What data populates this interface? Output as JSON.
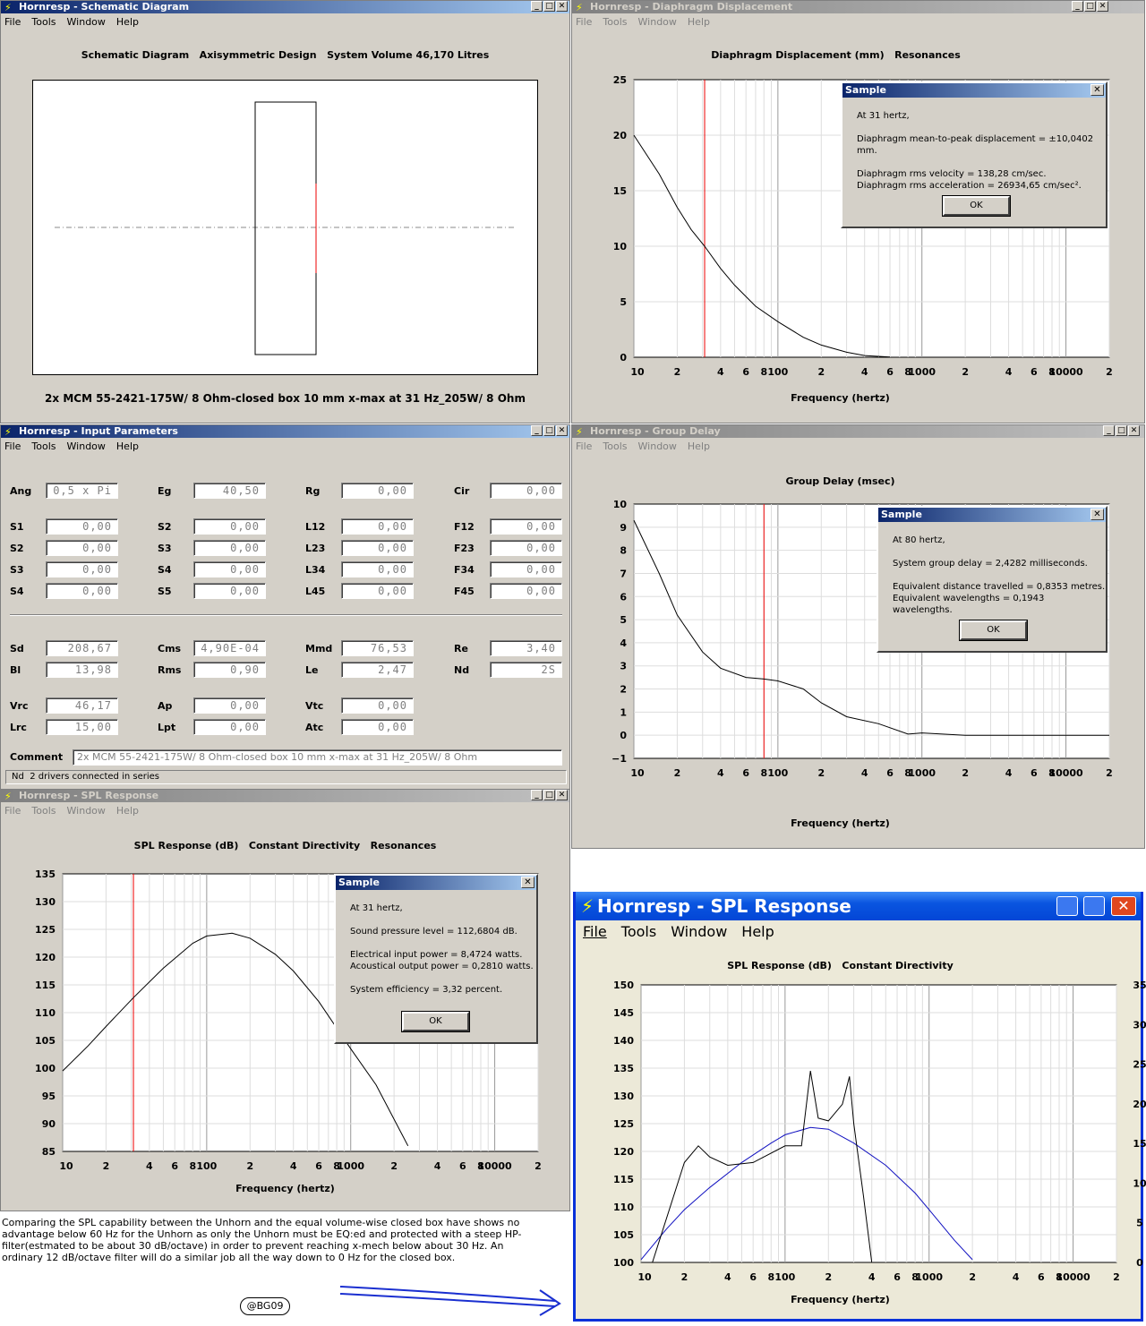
{
  "schematic": {
    "title": "Hornresp - Schematic Diagram",
    "menu": [
      "File",
      "Tools",
      "Window",
      "Help"
    ],
    "heading": "Schematic Diagram   Axisymmetric Design   System Volume 46,170 Litres",
    "caption": "2x MCM 55-2421-175W/ 8 Ohm-closed box 10 mm x-max at 31 Hz_205W/ 8 Ohm"
  },
  "displacement": {
    "title": "Hornresp - Diaphragm Displacement",
    "menu": [
      "File",
      "Tools",
      "Window",
      "Help"
    ],
    "heading": "Diaphragm Displacement (mm)   Resonances",
    "xlabel": "Frequency (hertz)",
    "yticks": [
      "25",
      "20",
      "15",
      "10",
      "5",
      "0"
    ],
    "dialog": {
      "title": "Sample",
      "lines": [
        "At 31 hertz,",
        "Diaphragm mean-to-peak displacement = ±10,0402 mm.",
        "Diaphragm rms velocity = 138,28 cm/sec.",
        "Diaphragm rms acceleration = 26934,65 cm/sec².",
        "OK"
      ]
    }
  },
  "input": {
    "title": "Hornresp - Input Parameters",
    "menu": [
      "File",
      "Tools",
      "Window",
      "Help"
    ],
    "params": [
      [
        "Ang",
        "0,5 x Pi",
        "Eg",
        "40,50",
        "Rg",
        "0,00",
        "Cir",
        "0,00"
      ],
      [
        "S1",
        "0,00",
        "S2",
        "0,00",
        "L12",
        "0,00",
        "F12",
        "0,00"
      ],
      [
        "S2",
        "0,00",
        "S3",
        "0,00",
        "L23",
        "0,00",
        "F23",
        "0,00"
      ],
      [
        "S3",
        "0,00",
        "S4",
        "0,00",
        "L34",
        "0,00",
        "F34",
        "0,00"
      ],
      [
        "S4",
        "0,00",
        "S5",
        "0,00",
        "L45",
        "0,00",
        "F45",
        "0,00"
      ],
      [
        "Sd",
        "208,67",
        "Cms",
        "4,90E-04",
        "Mmd",
        "76,53",
        "Re",
        "3,40"
      ],
      [
        "Bl",
        "13,98",
        "Rms",
        "0,90",
        "Le",
        "2,47",
        "Nd",
        "2S"
      ],
      [
        "Vrc",
        "46,17",
        "Ap",
        "0,00",
        "Vtc",
        "0,00",
        "",
        ""
      ],
      [
        "Lrc",
        "15,00",
        "Lpt",
        "0,00",
        "Atc",
        "0,00",
        "",
        ""
      ]
    ],
    "comment_label": "Comment",
    "comment": "2x MCM 55-2421-175W/ 8 Ohm-closed box 10 mm x-max at 31 Hz_205W/ 8 Ohm",
    "status_key": "Nd",
    "status": "2 drivers connected in series"
  },
  "group": {
    "title": "Hornresp - Group Delay",
    "menu": [
      "File",
      "Tools",
      "Window",
      "Help"
    ],
    "heading": "Group Delay (msec)",
    "xlabel": "Frequency (hertz)",
    "yticks": [
      "10",
      "9",
      "8",
      "7",
      "6",
      "5",
      "4",
      "3",
      "2",
      "1",
      "0",
      "−1"
    ],
    "dialog": {
      "title": "Sample",
      "lines": [
        "At 80 hertz,",
        "System group delay = 2,4282 milliseconds.",
        "Equivalent distance travelled = 0,8353 metres.",
        "Equivalent wavelengths = 0,1943 wavelengths.",
        "OK"
      ]
    }
  },
  "spl": {
    "title": "Hornresp - SPL Response",
    "menu": [
      "File",
      "Tools",
      "Window",
      "Help"
    ],
    "heading": "SPL Response (dB)   Constant Directivity   Resonances",
    "xlabel": "Frequency (hertz)",
    "yticks": [
      "135",
      "130",
      "125",
      "120",
      "115",
      "110",
      "105",
      "100",
      "95",
      "90",
      "85"
    ],
    "dialog": {
      "title": "Sample",
      "lines": [
        "At 31 hertz,",
        "Sound pressure level = 112,6804 dB.",
        "Electrical input power = 8,4724 watts.",
        "Acoustical output power = 0,2810 watts.",
        "System efficiency = 3,32 percent.",
        "OK"
      ]
    }
  },
  "spl2": {
    "title": "Hornresp - SPL Response",
    "menu": [
      "File",
      "Tools",
      "Window",
      "Help"
    ],
    "heading": "SPL Response (dB)   Constant Directivity",
    "xlabel": "Frequency (hertz)",
    "yticks": [
      "150",
      "145",
      "140",
      "135",
      "130",
      "125",
      "120",
      "115",
      "110",
      "105",
      "100"
    ],
    "y2ticks": [
      "35",
      "30",
      "25",
      "20",
      "15",
      "10",
      "5",
      "0"
    ]
  },
  "xticks": [
    "10",
    "2",
    "4",
    "6",
    "8",
    "100",
    "2",
    "4",
    "6",
    "8",
    "1000",
    "2",
    "4",
    "6",
    "8",
    "10000",
    "2"
  ],
  "note": "Comparing the SPL capability between the Unhorn and the equal volume-wise closed box have shows no advantage below 60 Hz for the Unhorn as  only  the Unhorn must be EQ:ed and protected with a steep HP-filter(estmated to be about 30 dB/octave) in order to prevent reaching x-mech below about 30 Hz. An ordinary 12 dB/octave filter will do a similar job all the way down to 0 Hz  for the closed box.",
  "badge": "@BG09",
  "chart_data": [
    {
      "type": "line",
      "title": "Diaphragm Displacement (mm)   Resonances",
      "xlabel": "Frequency (hertz)",
      "xscale": "log",
      "xlim": [
        10,
        20000
      ],
      "ylim": [
        0,
        25
      ],
      "marker_hz": 31,
      "x": [
        10,
        15,
        20,
        25,
        31,
        40,
        50,
        70,
        100,
        150,
        200,
        300,
        400,
        600
      ],
      "y": [
        20,
        16.5,
        13.5,
        11.5,
        10,
        8,
        6.5,
        4.6,
        3.2,
        1.8,
        1.1,
        0.45,
        0.15,
        0.02
      ]
    },
    {
      "type": "line",
      "title": "Group Delay (msec)",
      "xlabel": "Frequency (hertz)",
      "xscale": "log",
      "xlim": [
        10,
        20000
      ],
      "ylim": [
        -1,
        10
      ],
      "marker_hz": 80,
      "x": [
        10,
        15,
        20,
        30,
        40,
        60,
        80,
        100,
        150,
        200,
        300,
        500,
        800,
        1000,
        2000,
        5000,
        20000
      ],
      "y": [
        9.3,
        7,
        5.2,
        3.6,
        2.9,
        2.5,
        2.43,
        2.35,
        2.0,
        1.4,
        0.8,
        0.5,
        0.05,
        0.1,
        0,
        0,
        0
      ]
    },
    {
      "type": "line",
      "title": "SPL Response (dB)   Constant Directivity   Resonances",
      "xlabel": "Frequency (hertz)",
      "xscale": "log",
      "xlim": [
        10,
        20000
      ],
      "ylim": [
        85,
        135
      ],
      "marker_hz": 31,
      "x": [
        10,
        15,
        20,
        31,
        50,
        80,
        100,
        150,
        200,
        300,
        400,
        600,
        1000,
        1500,
        2500
      ],
      "y": [
        99.5,
        104,
        107.5,
        112.7,
        118,
        122.5,
        123.8,
        124.3,
        123.4,
        120.5,
        117.5,
        112,
        103.5,
        97,
        86
      ]
    },
    {
      "type": "line",
      "title": "SPL Response (dB)   Constant Directivity",
      "xlabel": "Frequency (hertz)",
      "xscale": "log",
      "xlim": [
        10,
        20000
      ],
      "ylim": [
        100,
        150
      ],
      "y2lim": [
        0,
        35
      ],
      "series": [
        {
          "x": [
            10,
            15,
            20,
            30,
            50,
            80,
            100,
            150,
            200,
            300,
            500,
            800,
            1000,
            1500,
            2000
          ],
          "y": [
            100.5,
            106,
            109.5,
            113.5,
            118,
            121.5,
            123,
            124.3,
            124,
            121.5,
            117.5,
            112.5,
            109.5,
            104,
            100.5
          ]
        },
        {
          "x": [
            12,
            20,
            25,
            30,
            40,
            60,
            100,
            130,
            150,
            170,
            200,
            250,
            280,
            300,
            350,
            400
          ],
          "y": [
            100,
            118,
            121,
            119,
            117.5,
            118,
            121,
            121,
            134.5,
            126,
            125.5,
            128.5,
            133.5,
            125,
            112,
            100
          ]
        }
      ]
    }
  ]
}
